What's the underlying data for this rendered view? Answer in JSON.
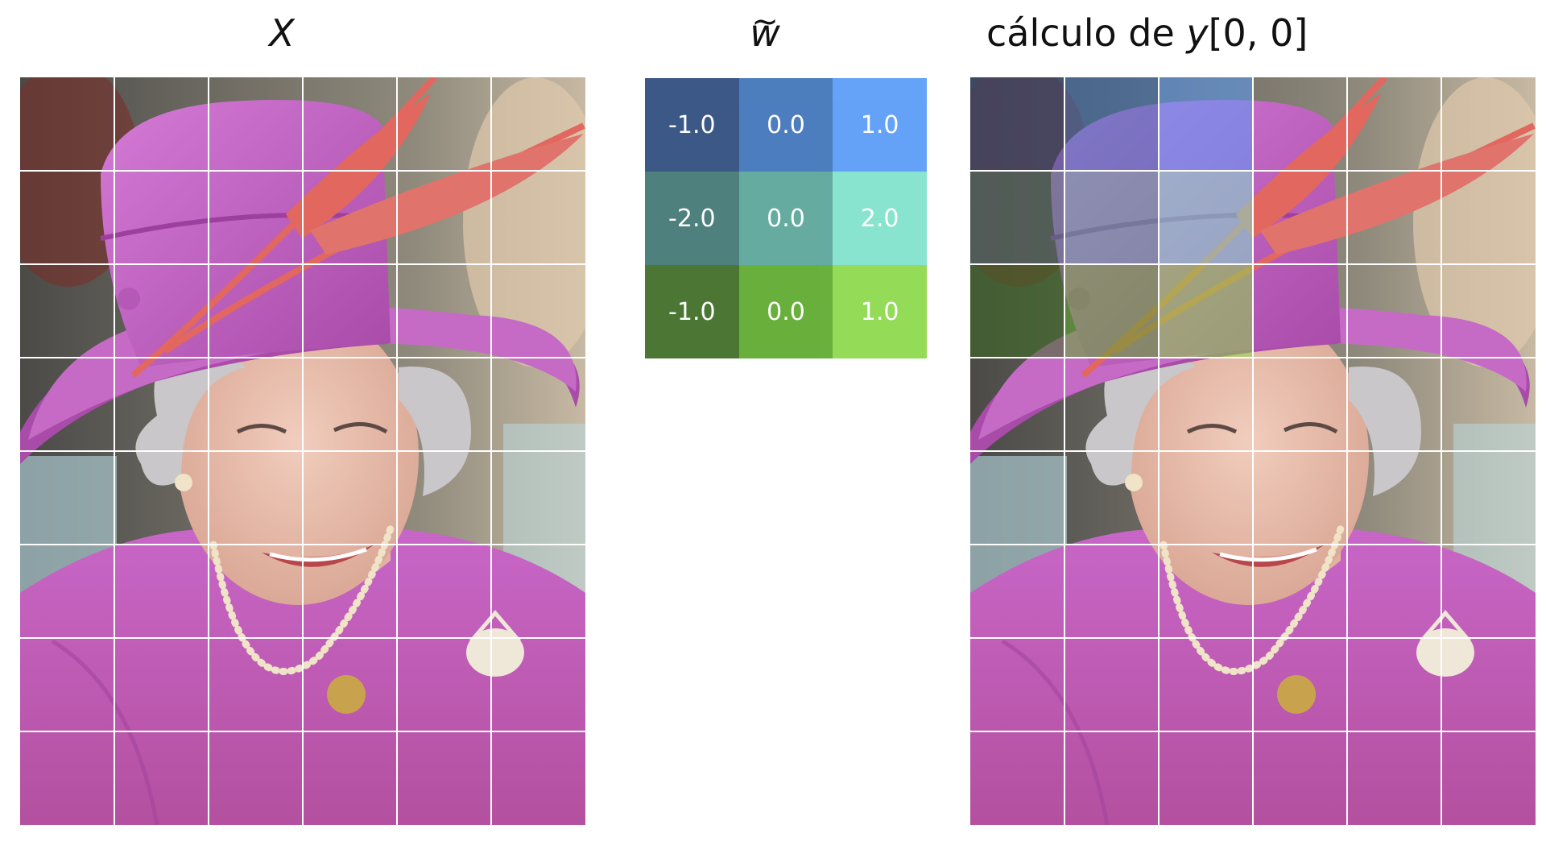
{
  "titles": {
    "x": "X",
    "w_char": "w",
    "w_tilde": "~",
    "calc_prefix": "cálculo de ",
    "calc_var": "y",
    "calc_index": "[0, 0]"
  },
  "kernel": {
    "cells": [
      {
        "value": "-1.0",
        "color": "#2b4a7d"
      },
      {
        "value": "0.0",
        "color": "#3d73b9"
      },
      {
        "value": "1.0",
        "color": "#579bf7"
      },
      {
        "value": "-2.0",
        "color": "#3f7672"
      },
      {
        "value": "0.0",
        "color": "#58a499"
      },
      {
        "value": "2.0",
        "color": "#7fe2cc"
      },
      {
        "value": "-1.0",
        "color": "#3c6b22"
      },
      {
        "value": "0.0",
        "color": "#5da92c"
      },
      {
        "value": "1.0",
        "color": "#8cd84a"
      }
    ]
  },
  "photo": {
    "grid_rows": 8,
    "grid_cols": 6,
    "colors": {
      "magenta": "#c65fc6",
      "magenta_dark": "#9d3f9f",
      "skin": "#e8bfae",
      "hair": "#c9c7c9",
      "feather": "#e2675f",
      "pearl": "#efe3c8",
      "brooch": "#efe7d8",
      "button": "#c9a24e"
    }
  }
}
